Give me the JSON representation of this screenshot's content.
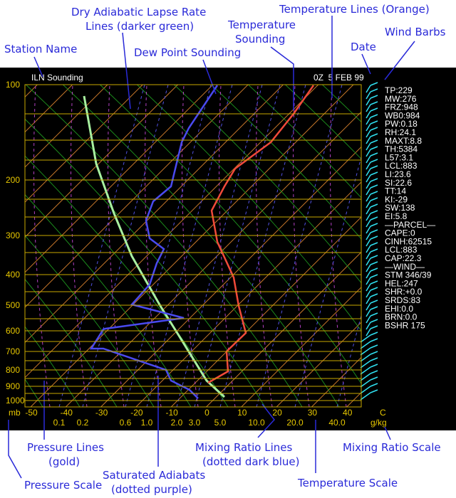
{
  "header": {
    "station": "ILN Sounding",
    "date": "0Z  5 FEB 99"
  },
  "annotations": {
    "dry_adiabats": [
      "Dry Adiabatic Lapse Rate",
      "Lines  (darker green)"
    ],
    "temperature_sounding": [
      "Temperature",
      "Sounding"
    ],
    "temperature_lines": "Temperature Lines (Orange)",
    "wind_barbs": "Wind Barbs",
    "station_name": "Station Name",
    "dew_point_sounding": "Dew Point Sounding",
    "date": "Date",
    "pressure_lines": [
      "Pressure Lines",
      "(gold)"
    ],
    "mixing_ratio_lines": [
      "Mixing Ratio Lines",
      "(dotted dark blue)"
    ],
    "mixing_ratio_scale": "Mixing Ratio Scale",
    "saturated_adiabats": [
      "Saturated Adiabats",
      "(dotted purple)"
    ],
    "pressure_scale": "Pressure Scale",
    "temperature_scale": "Temperature Scale"
  },
  "units": {
    "pressure": "mb",
    "temperature": "C",
    "mixing_ratio": "g/kg"
  },
  "pressure_labels": [
    100,
    200,
    300,
    400,
    500,
    600,
    700,
    800,
    900,
    1000
  ],
  "temperature_labels": [
    -50,
    -40,
    -30,
    -20,
    -10,
    0,
    10,
    20,
    30,
    40
  ],
  "mixing_ratio_labels": [
    "0.1",
    "0.2",
    "0.6",
    "1.0",
    "2.0",
    "3.0",
    "5.0",
    "10.0",
    "20.0",
    "40.0"
  ],
  "indices": [
    "TP:229",
    "MW:276",
    "FRZ:948",
    "WB0:984",
    "PW:0.18",
    "RH:24.1",
    "MAXT:8.8",
    "TH:5384",
    "L57:3.1",
    "LCL:883",
    "LI:23.6",
    "SI:22.6",
    "TT:14",
    "KI:-29",
    "SW:138",
    "EI:5.8",
    "—PARCEL—",
    "CAPE:0",
    "CINH:62515",
    "LCL:883",
    "CAP:22.3",
    "—WIND—",
    "STM 346/39",
    "HEL:247",
    "SHR:+0.0",
    "SRDS:83",
    "EHI:0.0",
    "BRN:0.0",
    "BSHR 175"
  ]
}
